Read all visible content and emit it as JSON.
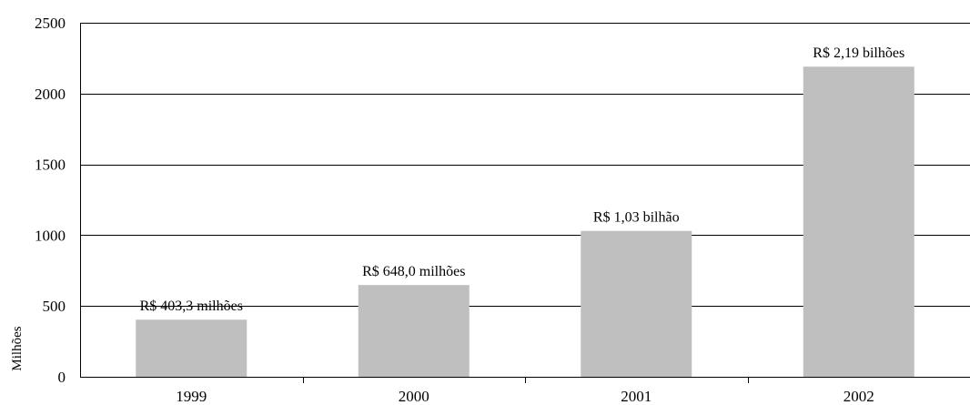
{
  "chart_data": {
    "type": "bar",
    "title": "",
    "xlabel": "",
    "ylabel": "Milhões",
    "ylim": [
      0,
      2500
    ],
    "yticks": [
      0,
      500,
      1000,
      1500,
      2000,
      2500
    ],
    "grid": true,
    "legend": "none",
    "categories": [
      "1999",
      "2000",
      "2001",
      "2002"
    ],
    "values": [
      403.3,
      648.0,
      1030,
      2190
    ],
    "data_labels": [
      "R$ 403,3 milhões",
      "R$ 648,0 milhões",
      "R$ 1,03 bilhão",
      "R$ 2,19 bilhões"
    ],
    "colors": {
      "bar": "#bfbfbf",
      "grid": "#000000",
      "axis": "#000000",
      "text": "#000000"
    }
  }
}
